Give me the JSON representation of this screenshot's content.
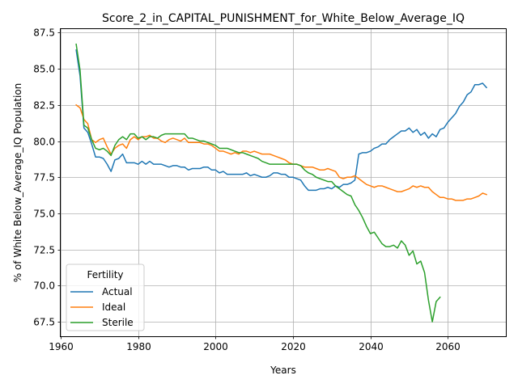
{
  "chart_data": {
    "type": "line",
    "title": "Score_2_in_CAPITAL_PUNISHMENT_for_White_Below_Average_IQ",
    "xlabel": "Years",
    "ylabel": "% of White Below_Average_IQ Population",
    "xlim": [
      1960,
      2075
    ],
    "ylim": [
      66.5,
      87.8
    ],
    "xticks": [
      1960,
      1980,
      2000,
      2020,
      2040,
      2060
    ],
    "yticks": [
      67.5,
      70.0,
      72.5,
      75.0,
      77.5,
      80.0,
      82.5,
      85.0,
      87.5
    ],
    "ytick_labels": [
      "67.5",
      "70.0",
      "72.5",
      "75.0",
      "77.5",
      "80.0",
      "82.5",
      "85.0",
      "87.5"
    ],
    "grid": true,
    "legend": {
      "title": "Fertility",
      "placement": "lower-left"
    },
    "series": [
      {
        "name": "Actual",
        "color": "#1f77b4",
        "x": [
          1964,
          1965,
          1966,
          1967,
          1968,
          1969,
          1970,
          1971,
          1972,
          1973,
          1974,
          1975,
          1976,
          1977,
          1978,
          1979,
          1980,
          1981,
          1982,
          1983,
          1984,
          1985,
          1986,
          1987,
          1988,
          1989,
          1990,
          1991,
          1992,
          1993,
          1994,
          1995,
          1996,
          1997,
          1998,
          1999,
          2000,
          2001,
          2002,
          2003,
          2004,
          2005,
          2006,
          2007,
          2008,
          2009,
          2010,
          2011,
          2012,
          2013,
          2014,
          2015,
          2016,
          2017,
          2018,
          2019,
          2020,
          2021,
          2022,
          2023,
          2024,
          2025,
          2026,
          2027,
          2028,
          2029,
          2030,
          2031,
          2032,
          2033,
          2034,
          2035,
          2036,
          2037,
          2038,
          2039,
          2040,
          2041,
          2042,
          2043,
          2044,
          2045,
          2046,
          2047,
          2048,
          2049,
          2050,
          2051,
          2052,
          2053,
          2054,
          2055,
          2056,
          2057,
          2058,
          2059,
          2060,
          2061,
          2062,
          2063,
          2064,
          2065,
          2066,
          2067,
          2068,
          2069,
          2070
        ],
        "y": [
          86.3,
          84.5,
          80.9,
          80.6,
          79.8,
          78.9,
          78.9,
          78.8,
          78.4,
          77.9,
          78.7,
          78.8,
          79.1,
          78.5,
          78.5,
          78.5,
          78.4,
          78.6,
          78.4,
          78.6,
          78.4,
          78.4,
          78.4,
          78.3,
          78.2,
          78.3,
          78.3,
          78.2,
          78.2,
          78.0,
          78.1,
          78.1,
          78.1,
          78.2,
          78.2,
          78.0,
          78.0,
          77.8,
          77.9,
          77.7,
          77.7,
          77.7,
          77.7,
          77.7,
          77.8,
          77.6,
          77.7,
          77.6,
          77.5,
          77.5,
          77.6,
          77.8,
          77.8,
          77.7,
          77.7,
          77.5,
          77.5,
          77.4,
          77.3,
          76.9,
          76.6,
          76.6,
          76.6,
          76.7,
          76.7,
          76.8,
          76.7,
          76.9,
          76.8,
          77.0,
          77.0,
          77.1,
          77.3,
          79.1,
          79.2,
          79.2,
          79.3,
          79.5,
          79.6,
          79.8,
          79.8,
          80.1,
          80.3,
          80.5,
          80.7,
          80.7,
          80.9,
          80.6,
          80.8,
          80.4,
          80.6,
          80.2,
          80.5,
          80.3,
          80.8,
          80.9,
          81.3,
          81.6,
          81.9,
          82.4,
          82.7,
          83.2,
          83.4,
          83.9,
          83.9,
          84.0,
          83.7
        ]
      },
      {
        "name": "Ideal",
        "color": "#ff7f0e",
        "x": [
          1964,
          1965,
          1966,
          1967,
          1968,
          1969,
          1970,
          1971,
          1972,
          1973,
          1974,
          1975,
          1976,
          1977,
          1978,
          1979,
          1980,
          1981,
          1982,
          1983,
          1984,
          1985,
          1986,
          1987,
          1988,
          1989,
          1990,
          1991,
          1992,
          1993,
          1994,
          1995,
          1996,
          1997,
          1998,
          1999,
          2000,
          2001,
          2002,
          2003,
          2004,
          2005,
          2006,
          2007,
          2008,
          2009,
          2010,
          2011,
          2012,
          2013,
          2014,
          2015,
          2016,
          2017,
          2018,
          2019,
          2020,
          2021,
          2022,
          2023,
          2024,
          2025,
          2026,
          2027,
          2028,
          2029,
          2030,
          2031,
          2032,
          2033,
          2034,
          2035,
          2036,
          2037,
          2038,
          2039,
          2040,
          2041,
          2042,
          2043,
          2044,
          2045,
          2046,
          2047,
          2048,
          2049,
          2050,
          2051,
          2052,
          2053,
          2054,
          2055,
          2056,
          2057,
          2058,
          2059,
          2060,
          2061,
          2062,
          2063,
          2064,
          2065,
          2066,
          2067,
          2068,
          2069,
          2070
        ],
        "y": [
          82.5,
          82.3,
          81.5,
          81.2,
          80.1,
          79.9,
          80.1,
          80.2,
          79.6,
          79.1,
          79.5,
          79.7,
          79.8,
          79.5,
          80.1,
          80.3,
          80.1,
          80.3,
          80.3,
          80.4,
          80.2,
          80.2,
          80.0,
          79.9,
          80.1,
          80.2,
          80.1,
          80.0,
          80.2,
          79.9,
          79.9,
          79.9,
          79.9,
          79.8,
          79.8,
          79.7,
          79.5,
          79.3,
          79.3,
          79.2,
          79.1,
          79.2,
          79.1,
          79.3,
          79.3,
          79.2,
          79.3,
          79.2,
          79.1,
          79.1,
          79.1,
          79.0,
          78.9,
          78.8,
          78.7,
          78.5,
          78.4,
          78.4,
          78.3,
          78.2,
          78.2,
          78.2,
          78.1,
          78.0,
          78.0,
          78.1,
          78.0,
          77.9,
          77.5,
          77.4,
          77.5,
          77.5,
          77.6,
          77.4,
          77.2,
          77.0,
          76.9,
          76.8,
          76.9,
          76.9,
          76.8,
          76.7,
          76.6,
          76.5,
          76.5,
          76.6,
          76.7,
          76.9,
          76.8,
          76.9,
          76.8,
          76.8,
          76.5,
          76.3,
          76.1,
          76.1,
          76.0,
          76.0,
          75.9,
          75.9,
          75.9,
          76.0,
          76.0,
          76.1,
          76.2,
          76.4,
          76.3
        ]
      },
      {
        "name": "Sterile",
        "color": "#2ca02c",
        "x": [
          1964,
          1965,
          1966,
          1967,
          1968,
          1969,
          1970,
          1971,
          1972,
          1973,
          1974,
          1975,
          1976,
          1977,
          1978,
          1979,
          1980,
          1981,
          1982,
          1983,
          1984,
          1985,
          1986,
          1987,
          1988,
          1989,
          1990,
          1991,
          1992,
          1993,
          1994,
          1995,
          1996,
          1997,
          1998,
          1999,
          2000,
          2001,
          2002,
          2003,
          2004,
          2005,
          2006,
          2007,
          2008,
          2009,
          2010,
          2011,
          2012,
          2013,
          2014,
          2015,
          2016,
          2017,
          2018,
          2019,
          2020,
          2021,
          2022,
          2023,
          2024,
          2025,
          2026,
          2027,
          2028,
          2029,
          2030,
          2031,
          2032,
          2033,
          2034,
          2035,
          2036,
          2037,
          2038,
          2039,
          2040,
          2041,
          2042,
          2043,
          2044,
          2045,
          2046,
          2047,
          2048,
          2049,
          2050,
          2051,
          2052,
          2053,
          2054,
          2055,
          2056,
          2057,
          2058
        ],
        "y": [
          86.7,
          84.9,
          81.1,
          80.9,
          80.1,
          79.5,
          79.4,
          79.5,
          79.3,
          79.0,
          79.7,
          80.1,
          80.3,
          80.1,
          80.5,
          80.5,
          80.2,
          80.3,
          80.1,
          80.3,
          80.3,
          80.2,
          80.4,
          80.5,
          80.5,
          80.5,
          80.5,
          80.5,
          80.5,
          80.2,
          80.2,
          80.1,
          80.0,
          80.0,
          79.9,
          79.8,
          79.7,
          79.5,
          79.5,
          79.5,
          79.4,
          79.3,
          79.2,
          79.2,
          79.1,
          79.0,
          78.9,
          78.8,
          78.6,
          78.5,
          78.4,
          78.4,
          78.4,
          78.4,
          78.4,
          78.4,
          78.4,
          78.4,
          78.3,
          78.0,
          77.8,
          77.7,
          77.5,
          77.4,
          77.3,
          77.2,
          77.2,
          76.9,
          76.7,
          76.5,
          76.3,
          76.2,
          75.6,
          75.2,
          74.7,
          74.1,
          73.6,
          73.7,
          73.3,
          72.9,
          72.7,
          72.7,
          72.8,
          72.6,
          73.1,
          72.8,
          72.1,
          72.4,
          71.5,
          71.7,
          70.9,
          69.0,
          67.5,
          68.9,
          69.2
        ]
      }
    ]
  }
}
